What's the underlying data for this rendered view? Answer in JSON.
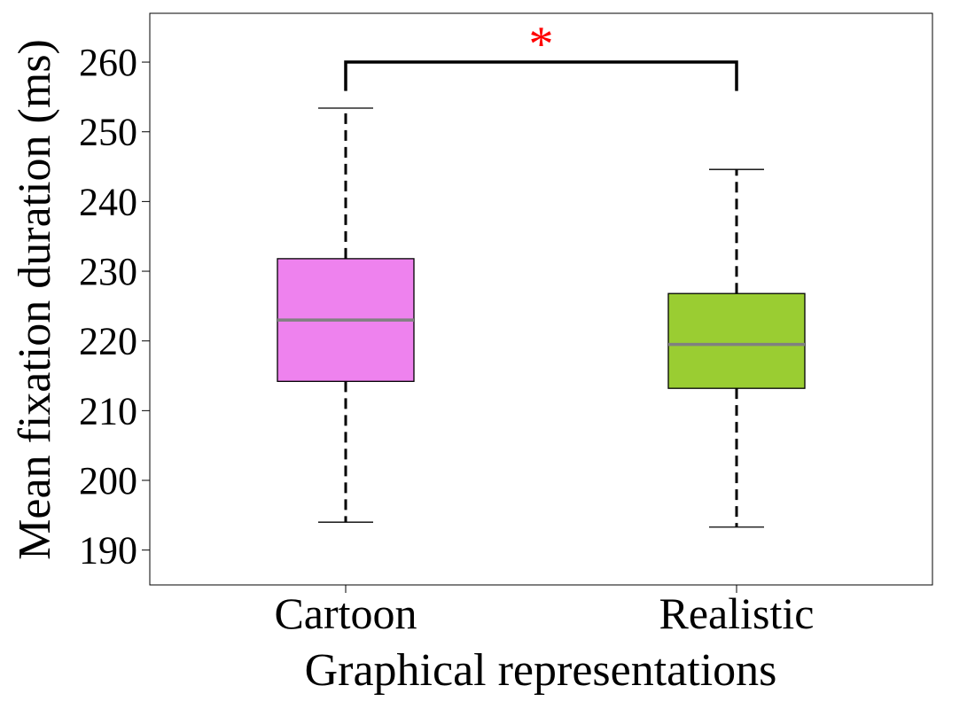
{
  "chart_data": {
    "type": "box",
    "title": "",
    "xlabel": "Graphical representations",
    "ylabel": "Mean fixation duration (ms)",
    "ylim": [
      185,
      267
    ],
    "yticks": [
      190,
      200,
      210,
      220,
      230,
      240,
      250,
      260
    ],
    "categories": [
      "Cartoon",
      "Realistic"
    ],
    "boxes": [
      {
        "category": "Cartoon",
        "whisker_low": 194,
        "q1": 214.2,
        "median": 223,
        "q3": 231.8,
        "whisker_high": 253.4,
        "color": "#EE82EE"
      },
      {
        "category": "Realistic",
        "whisker_low": 193.3,
        "q1": 213.2,
        "median": 219.5,
        "q3": 226.8,
        "whisker_high": 244.6,
        "color": "#9ACD32"
      }
    ],
    "median_color": "#808080",
    "significance": {
      "between": [
        "Cartoon",
        "Realistic"
      ],
      "level": 260,
      "drop_to": 257,
      "label": "*",
      "color": "#FF0000"
    },
    "grid": false,
    "legend": "none"
  }
}
